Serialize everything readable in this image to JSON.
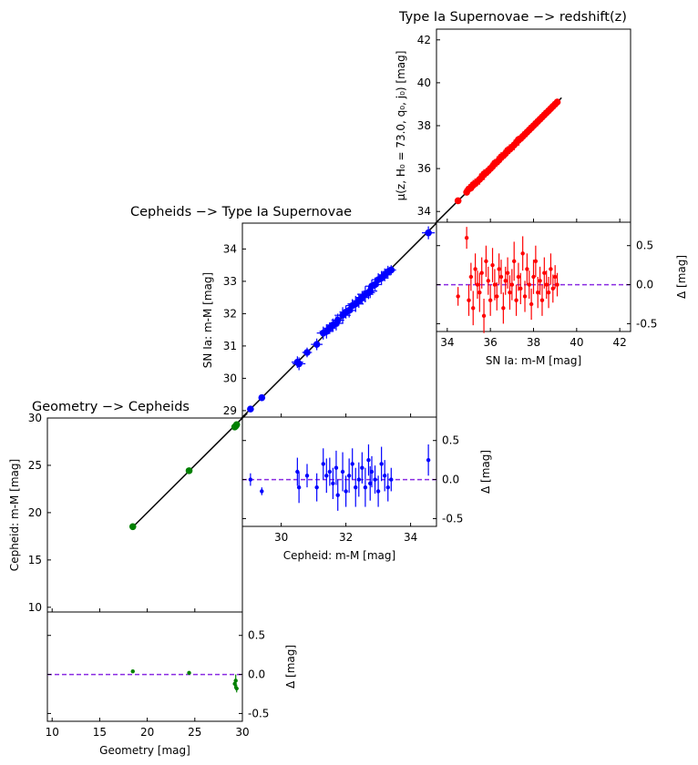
{
  "chart_data": [
    {
      "type": "scatter",
      "title": "Type Ia Supernovae −> redshift(z)",
      "ylabel": "μ(z, H₀ = 73.0, q₀, j₀) [mag]",
      "xlim": [
        33.5,
        42.5
      ],
      "ylim": [
        33.5,
        42.5
      ],
      "yticks": [
        34,
        36,
        38,
        40,
        42
      ],
      "marker_color": "#ff0000",
      "fit_line": [
        [
          32.5,
          32.5
        ],
        [
          39.3,
          39.3
        ]
      ],
      "residual_panel": {
        "xlabel": "SN Ia: m-M [mag]",
        "ylabel": "Δ [mag]",
        "xticks": [
          34,
          36,
          38,
          40,
          42
        ],
        "yticks": [
          0.5,
          0.0,
          -0.5
        ],
        "ylim": [
          -0.6,
          0.8
        ],
        "zero_line_color": "#8a2be2"
      },
      "series": [
        {
          "x": [
            34.5,
            34.9,
            35.0,
            35.1,
            35.2,
            35.3,
            35.4,
            35.5,
            35.6,
            35.7,
            35.8,
            35.9,
            36.0,
            36.1,
            36.2,
            36.3,
            36.4,
            36.5,
            36.6,
            36.7,
            36.8,
            36.9,
            37.0,
            37.1,
            37.2,
            37.3,
            37.4,
            37.5,
            37.6,
            37.7,
            37.8,
            37.9,
            38.0,
            38.1,
            38.2,
            38.3,
            38.4,
            38.5,
            38.6,
            38.7,
            38.8,
            38.9,
            39.0,
            39.1
          ],
          "y": [
            34.5,
            34.9,
            35.05,
            35.1,
            35.25,
            35.3,
            35.4,
            35.5,
            35.6,
            35.75,
            35.8,
            35.9,
            36.0,
            36.1,
            36.25,
            36.3,
            36.4,
            36.55,
            36.6,
            36.7,
            36.85,
            36.9,
            37.0,
            37.1,
            37.2,
            37.35,
            37.4,
            37.5,
            37.6,
            37.7,
            37.8,
            37.9,
            38.0,
            38.1,
            38.2,
            38.3,
            38.4,
            38.5,
            38.6,
            38.7,
            38.8,
            38.9,
            39.0,
            39.1
          ],
          "residual": [
            -0.15,
            0.6,
            -0.2,
            0.1,
            -0.3,
            0.2,
            0.0,
            -0.1,
            0.15,
            -0.4,
            0.3,
            0.05,
            -0.2,
            0.25,
            0.0,
            -0.15,
            0.2,
            0.1,
            -0.3,
            0.05,
            0.15,
            -0.1,
            0.0,
            0.3,
            -0.2,
            0.1,
            -0.05,
            0.4,
            -0.15,
            0.2,
            0.0,
            -0.25,
            0.1,
            0.3,
            -0.1,
            0.05,
            -0.2,
            0.15,
            0.0,
            -0.1,
            0.2,
            -0.05,
            0.1,
            0.0
          ],
          "error": [
            0.12,
            0.14,
            0.2,
            0.18,
            0.22,
            0.2,
            0.18,
            0.25,
            0.2,
            0.22,
            0.2,
            0.18,
            0.2,
            0.22,
            0.2,
            0.18,
            0.2,
            0.22,
            0.2,
            0.18,
            0.2,
            0.22,
            0.2,
            0.25,
            0.2,
            0.18,
            0.2,
            0.22,
            0.2,
            0.2,
            0.18,
            0.2,
            0.22,
            0.2,
            0.2,
            0.18,
            0.2,
            0.2,
            0.18,
            0.2,
            0.2,
            0.18,
            0.15,
            0.15
          ]
        }
      ]
    },
    {
      "type": "scatter",
      "title": "Cepheids −> Type Ia Supernovae",
      "ylabel": "SN Ia: m-M [mag]",
      "xlim": [
        28.8,
        34.8
      ],
      "ylim": [
        28.8,
        34.8
      ],
      "yticks": [
        29,
        30,
        31,
        32,
        33,
        34
      ],
      "marker_color": "#0000ff",
      "fit_line": [
        [
          28.0,
          28.0
        ],
        [
          34.8,
          34.8
        ]
      ],
      "residual_panel": {
        "xlabel": "Cepheid: m-M [mag]",
        "ylabel": "Δ [mag]",
        "xticks": [
          30,
          32,
          34
        ],
        "yticks": [
          0.5,
          0.0,
          -0.5
        ],
        "ylim": [
          -0.6,
          0.8
        ],
        "zero_line_color": "#8a2be2"
      },
      "series": [
        {
          "x": [
            29.05,
            29.4,
            30.5,
            30.55,
            30.8,
            31.1,
            31.3,
            31.4,
            31.5,
            31.6,
            31.7,
            31.75,
            31.9,
            32.0,
            32.1,
            32.2,
            32.3,
            32.4,
            32.5,
            32.6,
            32.7,
            32.75,
            32.8,
            32.9,
            33.0,
            33.1,
            33.2,
            33.3,
            33.4,
            34.55
          ],
          "y": [
            29.05,
            29.4,
            30.5,
            30.45,
            30.8,
            31.05,
            31.4,
            31.45,
            31.55,
            31.65,
            31.7,
            31.8,
            31.95,
            32.05,
            32.1,
            32.25,
            32.3,
            32.4,
            32.5,
            32.6,
            32.65,
            32.7,
            32.85,
            32.9,
            33.05,
            33.1,
            33.2,
            33.3,
            33.35,
            34.5
          ],
          "residual": [
            0.0,
            -0.15,
            0.1,
            -0.1,
            0.05,
            -0.1,
            0.2,
            0.05,
            0.1,
            -0.05,
            0.15,
            -0.2,
            0.1,
            -0.15,
            0.05,
            0.2,
            -0.1,
            0.0,
            0.15,
            -0.1,
            0.25,
            -0.05,
            0.1,
            0.0,
            -0.15,
            0.2,
            0.05,
            -0.1,
            0.0,
            0.25
          ],
          "error": [
            0.08,
            0.05,
            0.18,
            0.2,
            0.15,
            0.18,
            0.2,
            0.22,
            0.18,
            0.2,
            0.22,
            0.2,
            0.25,
            0.2,
            0.22,
            0.2,
            0.25,
            0.22,
            0.2,
            0.25,
            0.2,
            0.22,
            0.2,
            0.18,
            0.2,
            0.22,
            0.2,
            0.18,
            0.15,
            0.2
          ]
        }
      ]
    },
    {
      "type": "scatter",
      "title": "Geometry −> Cepheids",
      "xlabel": "Geometry [mag]",
      "ylabel": "Cepheid: m-M [mag]",
      "xlim": [
        9.5,
        30
      ],
      "ylim": [
        9.5,
        30
      ],
      "yticks": [
        10,
        15,
        20,
        25,
        30
      ],
      "marker_color": "#008000",
      "fit_line": [
        [
          18.4,
          18.4
        ],
        [
          30.5,
          30.5
        ]
      ],
      "residual_panel": {
        "xlabel": "Geometry [mag]",
        "ylabel": "Δ [mag]",
        "xticks": [
          10,
          15,
          20,
          25,
          30
        ],
        "yticks": [
          0.5,
          0.0,
          -0.5
        ],
        "ylim": [
          -0.6,
          0.8
        ],
        "zero_line_color": "#8a2be2"
      },
      "series": [
        {
          "x": [
            18.48,
            24.4,
            29.2,
            29.3,
            29.4
          ],
          "y": [
            18.52,
            24.43,
            29.05,
            29.15,
            29.3
          ],
          "residual": [
            0.04,
            0.02,
            -0.12,
            -0.08,
            -0.18
          ],
          "error": [
            0.02,
            0.02,
            0.06,
            0.08,
            0.05
          ]
        }
      ]
    }
  ]
}
